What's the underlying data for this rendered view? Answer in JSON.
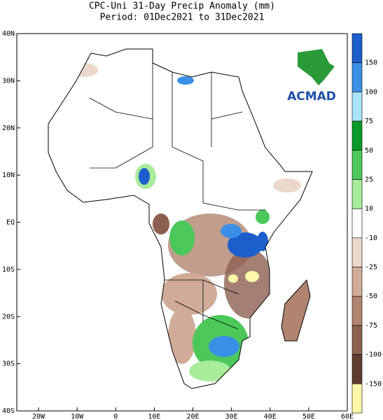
{
  "title": "CPC-Uni 31-Day Precip Anomaly (mm)",
  "subtitle": "Period: 01Dec2021 to 31Dec2021",
  "logo": "ACMAD",
  "lat_labels": [
    "40N",
    "30N",
    "20N",
    "10N",
    "EQ",
    "10S",
    "20S",
    "30S",
    "40S"
  ],
  "lon_labels": [
    "20W",
    "10W",
    "0",
    "10E",
    "20E",
    "30E",
    "40E",
    "50E",
    "60E"
  ],
  "colorbar": {
    "labels": [
      150,
      100,
      75,
      50,
      25,
      10,
      -10,
      -25,
      -50,
      -75,
      -100,
      -150
    ],
    "colors": [
      "#1c5fcc",
      "#3c8fe6",
      "#a8e4f8",
      "#0a9a28",
      "#4cc85a",
      "#a8ec9c",
      "#ffffff",
      "#ecd8cc",
      "#d0ac98",
      "#b08470",
      "#8c6050",
      "#603c30",
      "#fff8a8"
    ]
  }
}
